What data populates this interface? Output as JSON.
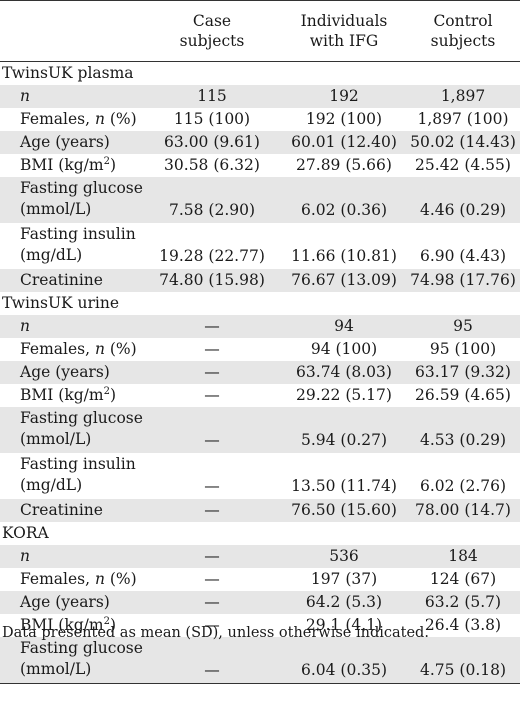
{
  "header": {
    "col1": [
      "Case",
      "subjects"
    ],
    "col2": [
      "Individuals",
      "with IFG"
    ],
    "col3": [
      "Control",
      "subjects"
    ]
  },
  "sections": [
    {
      "title": "TwinsUK plasma",
      "rows": [
        {
          "label": "n",
          "italic": true,
          "values": [
            "115",
            "192",
            "1,897"
          ]
        },
        {
          "label": "Females, n (%)",
          "values": [
            "115 (100)",
            "192 (100)",
            "1,897 (100)"
          ]
        },
        {
          "label": "Age (years)",
          "values": [
            "63.00 (9.61)",
            "60.01 (12.40)",
            "50.02 (14.43)"
          ]
        },
        {
          "label": "BMI (kg/m²)",
          "values": [
            "30.58 (6.32)",
            "27.89 (5.66)",
            "25.42 (4.55)"
          ]
        },
        {
          "label1": "Fasting glucose",
          "label2": "(mmol/L)",
          "values": [
            "7.58 (2.90)",
            "6.02 (0.36)",
            "4.46 (0.29)"
          ]
        },
        {
          "label1": "Fasting insulin",
          "label2": "(mg/dL)",
          "values": [
            "19.28 (22.77)",
            "11.66 (10.81)",
            "6.90 (4.43)"
          ]
        },
        {
          "label": "Creatinine",
          "values": [
            "74.80 (15.98)",
            "76.67 (13.09)",
            "74.98 (17.76)"
          ]
        }
      ]
    },
    {
      "title": "TwinsUK urine",
      "rows": [
        {
          "label": "n",
          "italic": true,
          "values": [
            "—",
            "94",
            "95"
          ]
        },
        {
          "label": "Females, n (%)",
          "values": [
            "—",
            "94 (100)",
            "95 (100)"
          ]
        },
        {
          "label": "Age (years)",
          "values": [
            "—",
            "63.74 (8.03)",
            "63.17 (9.32)"
          ]
        },
        {
          "label": "BMI (kg/m²)",
          "values": [
            "—",
            "29.22 (5.17)",
            "26.59 (4.65)"
          ]
        },
        {
          "label1": "Fasting glucose",
          "label2": "(mmol/L)",
          "values": [
            "—",
            "5.94 (0.27)",
            "4.53 (0.29)"
          ]
        },
        {
          "label1": "Fasting insulin",
          "label2": "(mg/dL)",
          "values": [
            "—",
            "13.50 (11.74)",
            "6.02 (2.76)"
          ]
        },
        {
          "label": "Creatinine",
          "values": [
            "—",
            "76.50 (15.60)",
            "78.00 (14.7)"
          ]
        }
      ]
    },
    {
      "title": "KORA",
      "rows": [
        {
          "label": "n",
          "italic": true,
          "values": [
            "—",
            "536",
            "184"
          ]
        },
        {
          "label": "Females, n (%)",
          "values": [
            "—",
            "197 (37)",
            "124 (67)"
          ]
        },
        {
          "label": "Age (years)",
          "values": [
            "—",
            "64.2 (5.3)",
            "63.2 (5.7)"
          ]
        },
        {
          "label": "BMI (kg/m²)",
          "values": [
            "—",
            "29.1 (4.1)",
            "26.4 (3.8)"
          ]
        },
        {
          "label1": "Fasting glucose",
          "label2": "(mmol/L)",
          "values": [
            "—",
            "6.04 (0.35)",
            "4.75 (0.18)"
          ]
        }
      ]
    }
  ],
  "footnote": "Data presented as mean (SD), unless otherwise indicated.",
  "colors": {
    "shade": "#e6e6e6",
    "rule": "#333333"
  }
}
